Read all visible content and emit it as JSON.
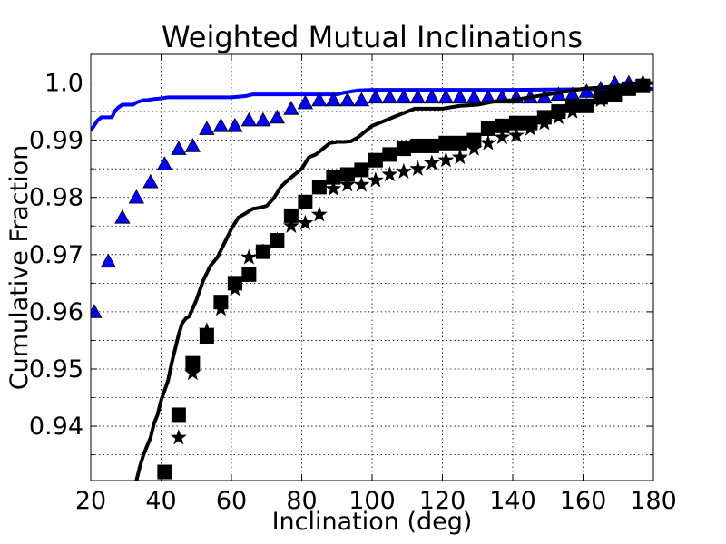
{
  "chart_data": {
    "type": "scatter",
    "title": "Weighted Mutual Inclinations",
    "xlabel": "Inclination (deg)",
    "ylabel": "Cumulative Fraction",
    "xlim": [
      20,
      180
    ],
    "ylim": [
      0.9305,
      1.005
    ],
    "grid": true,
    "x_ticks": [
      20,
      40,
      60,
      80,
      100,
      120,
      140,
      160,
      180
    ],
    "x_tick_labels": [
      "20",
      "40",
      "60",
      "80",
      "100",
      "120",
      "140",
      "160",
      "180"
    ],
    "y_ticks": [
      0.94,
      0.95,
      0.96,
      0.97,
      0.98,
      0.99,
      1.0
    ],
    "y_tick_labels": [
      "0.94",
      "0.95",
      "0.96",
      "0.97",
      "0.98",
      "0.99",
      "1.0"
    ],
    "y_minor_ticks": [
      0.935,
      0.945,
      0.955,
      0.965,
      0.975,
      0.985,
      0.995
    ],
    "series": [
      {
        "name": "blue-line",
        "style": "line",
        "color": "#0000ff",
        "x": [
          20,
          21,
          22,
          23,
          26,
          27,
          28,
          29,
          32,
          33,
          34,
          35,
          36,
          38,
          40,
          41,
          42,
          44,
          48,
          52,
          56,
          60,
          64,
          66,
          70,
          80,
          90,
          92,
          94,
          96,
          100,
          120,
          140,
          160,
          180
        ],
        "y": [
          0.9917,
          0.9926,
          0.9935,
          0.994,
          0.994,
          0.9952,
          0.9958,
          0.9962,
          0.9962,
          0.9966,
          0.9968,
          0.997,
          0.997,
          0.9972,
          0.9973,
          0.9974,
          0.9975,
          0.9975,
          0.9975,
          0.9975,
          0.9975,
          0.9975,
          0.9977,
          0.998,
          0.998,
          0.998,
          0.998,
          0.9983,
          0.9985,
          0.9987,
          0.9988,
          0.9988,
          0.9988,
          0.9989,
          0.999
        ]
      },
      {
        "name": "blue-triangles",
        "style": "marker",
        "marker": "triangle",
        "color": "#0000ff",
        "x": [
          21,
          25,
          29,
          33,
          37,
          41,
          45,
          49,
          53,
          57,
          61,
          65,
          69,
          73,
          77,
          81,
          85,
          89,
          93,
          97,
          101,
          105,
          109,
          113,
          117,
          121,
          125,
          129,
          133,
          137,
          141,
          145,
          149,
          153,
          157,
          161,
          165,
          169,
          173,
          177
        ],
        "y": [
          0.96,
          0.9688,
          0.9765,
          0.98,
          0.9827,
          0.9858,
          0.9885,
          0.989,
          0.992,
          0.9925,
          0.9925,
          0.9935,
          0.9935,
          0.994,
          0.9955,
          0.9965,
          0.997,
          0.997,
          0.997,
          0.997,
          0.9975,
          0.9975,
          0.9975,
          0.9975,
          0.9975,
          0.9975,
          0.9975,
          0.9975,
          0.9975,
          0.9975,
          0.9975,
          0.9975,
          0.9975,
          0.998,
          0.998,
          0.9985,
          0.999,
          1.0,
          1.0,
          1.0
        ]
      },
      {
        "name": "black-line",
        "style": "line",
        "color": "#000000",
        "x": [
          33,
          34,
          35,
          37,
          38,
          39,
          40,
          42,
          43,
          44,
          45,
          46,
          47,
          48,
          50,
          52,
          54,
          56,
          58,
          60,
          62,
          64,
          66,
          68,
          70,
          72,
          74,
          76,
          78,
          80,
          82,
          84,
          86,
          88,
          90,
          92,
          94,
          96,
          98,
          100,
          102,
          104,
          106,
          108,
          110,
          112,
          114,
          116,
          118,
          120,
          125,
          130,
          135,
          140,
          145,
          150,
          155,
          160,
          165,
          170,
          175,
          180
        ],
        "y": [
          0.9305,
          0.933,
          0.935,
          0.938,
          0.9405,
          0.942,
          0.9445,
          0.948,
          0.951,
          0.9535,
          0.956,
          0.958,
          0.9588,
          0.9592,
          0.962,
          0.9655,
          0.968,
          0.9695,
          0.972,
          0.9745,
          0.9765,
          0.9772,
          0.978,
          0.9782,
          0.9785,
          0.9798,
          0.9818,
          0.983,
          0.984,
          0.985,
          0.987,
          0.9875,
          0.9885,
          0.9895,
          0.9897,
          0.9897,
          0.9898,
          0.9905,
          0.9915,
          0.9925,
          0.993,
          0.9935,
          0.994,
          0.9945,
          0.995,
          0.9955,
          0.9955,
          0.9955,
          0.9955,
          0.9955,
          0.996,
          0.9962,
          0.9968,
          0.997,
          0.9975,
          0.998,
          0.9985,
          0.999,
          0.9992,
          0.9995,
          0.9998,
          1.0
        ]
      },
      {
        "name": "black-squares",
        "style": "marker",
        "marker": "square",
        "color": "#000000",
        "x": [
          41,
          45,
          49,
          53,
          57,
          61,
          65,
          69,
          73,
          77,
          81,
          85,
          89,
          93,
          97,
          101,
          105,
          109,
          113,
          117,
          121,
          125,
          129,
          133,
          137,
          141,
          145,
          149,
          153,
          157,
          161,
          165,
          169,
          173,
          177
        ],
        "y": [
          0.932,
          0.942,
          0.951,
          0.9557,
          0.9617,
          0.965,
          0.9665,
          0.9705,
          0.9725,
          0.9768,
          0.9792,
          0.9818,
          0.9835,
          0.984,
          0.9848,
          0.9865,
          0.9875,
          0.9885,
          0.989,
          0.989,
          0.9895,
          0.9895,
          0.99,
          0.992,
          0.9925,
          0.993,
          0.993,
          0.994,
          0.995,
          0.996,
          0.996,
          0.9975,
          0.998,
          0.999,
          0.9995
        ]
      },
      {
        "name": "black-stars",
        "style": "marker",
        "marker": "star",
        "color": "#000000",
        "x": [
          45,
          49,
          53,
          57,
          61,
          65,
          69,
          73,
          77,
          81,
          85,
          89,
          93,
          97,
          101,
          105,
          109,
          113,
          117,
          121,
          125,
          129,
          133,
          137,
          141,
          145,
          149,
          153,
          157,
          161,
          165,
          169,
          173,
          177
        ],
        "y": [
          0.938,
          0.9493,
          0.9567,
          0.9605,
          0.964,
          0.9695,
          0.9705,
          0.9725,
          0.975,
          0.9755,
          0.977,
          0.9815,
          0.9822,
          0.9822,
          0.983,
          0.984,
          0.9845,
          0.985,
          0.986,
          0.9865,
          0.987,
          0.9885,
          0.9895,
          0.9905,
          0.9908,
          0.992,
          0.993,
          0.994,
          0.995,
          0.996,
          0.997,
          0.9985,
          0.999,
          1.0
        ]
      }
    ]
  }
}
